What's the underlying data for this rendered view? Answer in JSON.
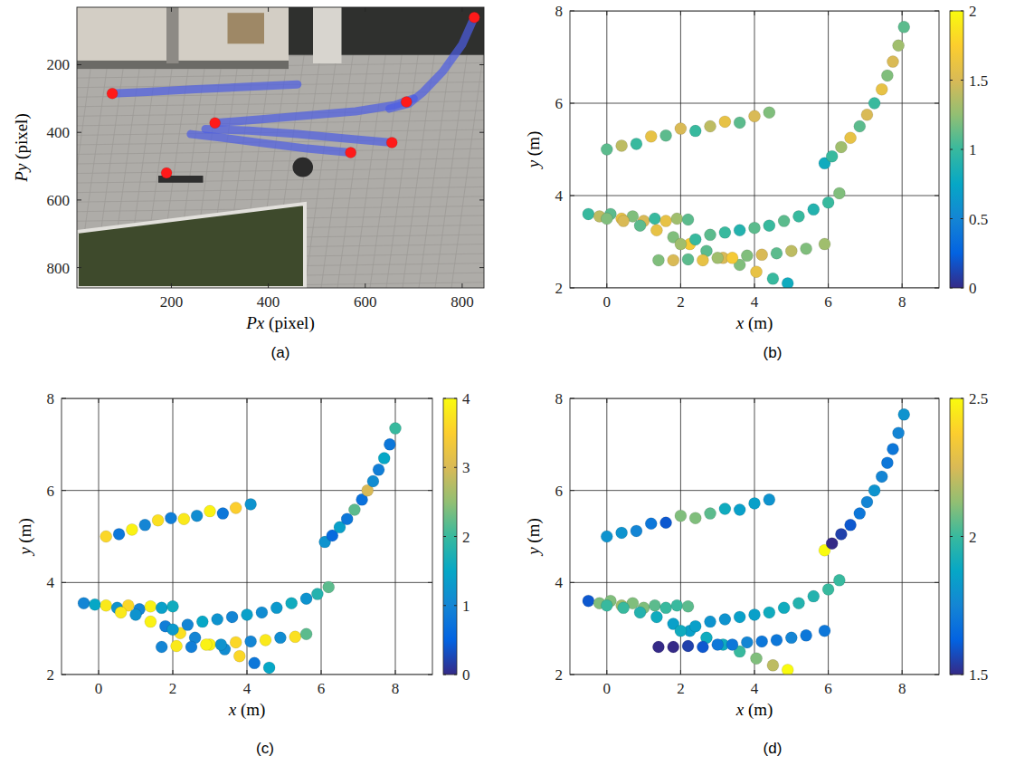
{
  "chart_data": [
    {
      "type": "image",
      "title": "(a)",
      "xlabel": "Px (pixel)",
      "ylabel": "Py (pixel)",
      "xlim": [
        5,
        845
      ],
      "ylim": [
        860,
        30
      ],
      "xticks": [
        200,
        400,
        600,
        800
      ],
      "yticks": [
        200,
        400,
        600,
        800
      ],
      "grid": false,
      "series": [
        {
          "type": "line",
          "color": "#4b5ce4",
          "x": [
            78,
            150,
            250,
            350,
            460
          ],
          "values": [
            285,
            280,
            272,
            266,
            258
          ]
        },
        {
          "type": "line",
          "color": "#4b5ce4",
          "x": [
            290,
            380,
            480,
            580,
            660,
            700
          ],
          "values": [
            372,
            362,
            350,
            338,
            320,
            300
          ]
        },
        {
          "type": "line",
          "color": "#4b5ce4",
          "x": [
            570,
            480,
            390,
            300,
            240
          ],
          "values": [
            460,
            448,
            432,
            415,
            405
          ]
        },
        {
          "type": "line",
          "color": "#4b5ce4",
          "x": [
            655,
            560,
            460,
            360,
            270
          ],
          "values": [
            430,
            418,
            405,
            395,
            390
          ]
        },
        {
          "type": "line",
          "color": "#4b5ce4",
          "x": [
            825,
            800,
            760,
            720,
            690,
            650
          ],
          "values": [
            60,
            140,
            220,
            280,
            315,
            330
          ]
        },
        {
          "type": "scatter",
          "color": "#ff1a1a",
          "marker": "circle",
          "x": [
            78,
            290,
            570,
            655,
            685,
            825,
            190
          ],
          "values": [
            285,
            372,
            460,
            430,
            310,
            60,
            520
          ]
        }
      ]
    },
    {
      "type": "scatter",
      "title": "(b)",
      "xlabel": "x (m)",
      "ylabel": "y (m)",
      "xlim": [
        -1,
        9
      ],
      "ylim": [
        2,
        8
      ],
      "xticks": [
        0,
        2,
        4,
        6,
        8
      ],
      "yticks": [
        2,
        4,
        6,
        8
      ],
      "grid": true,
      "marker": "circle",
      "colorbar": {
        "lim": [
          0,
          2
        ],
        "ticks": [
          0,
          0.5,
          1,
          1.5,
          2
        ]
      },
      "series": [
        {
          "x": [
            0,
            0.4,
            0.8,
            1.2,
            1.6,
            2.0,
            2.4,
            2.8,
            3.2,
            3.6,
            4.0,
            4.4
          ],
          "values": [
            5.0,
            5.08,
            5.12,
            5.28,
            5.3,
            5.45,
            5.4,
            5.5,
            5.6,
            5.58,
            5.72,
            5.8
          ],
          "color_values": [
            1.1,
            1.4,
            1.0,
            1.6,
            1.1,
            1.5,
            1.0,
            1.4,
            1.6,
            1.1,
            1.5,
            1.2
          ]
        },
        {
          "x": [
            5.9,
            6.1,
            6.35,
            6.6,
            6.85,
            7.05,
            7.25,
            7.45,
            7.6,
            7.75,
            7.9,
            8.05
          ],
          "values": [
            4.7,
            4.85,
            5.05,
            5.25,
            5.5,
            5.75,
            6.0,
            6.3,
            6.6,
            6.9,
            7.25,
            7.65
          ],
          "color_values": [
            0.8,
            1.0,
            1.3,
            1.6,
            1.1,
            1.5,
            1.0,
            1.6,
            1.2,
            1.5,
            1.3,
            1.1
          ]
        },
        {
          "x": [
            -0.5,
            -0.2,
            0.1,
            0.4,
            0.7,
            1.0,
            1.3,
            1.6,
            1.9,
            2.2
          ],
          "values": [
            3.6,
            3.55,
            3.6,
            3.5,
            3.55,
            3.45,
            3.5,
            3.45,
            3.5,
            3.48
          ],
          "color_values": [
            1.0,
            1.4,
            1.1,
            1.6,
            1.2,
            1.5,
            1.0,
            1.6,
            1.3,
            1.1
          ]
        },
        {
          "x": [
            0.0,
            0.45,
            0.9,
            1.35,
            1.8,
            2.25,
            2.7,
            3.15,
            3.6,
            4.05,
            4.5,
            4.9
          ],
          "values": [
            3.5,
            3.45,
            3.35,
            3.25,
            3.1,
            2.95,
            2.8,
            2.65,
            2.5,
            2.35,
            2.2,
            2.1
          ],
          "color_values": [
            1.2,
            1.5,
            1.1,
            1.6,
            1.2,
            1.7,
            1.1,
            1.5,
            1.2,
            1.6,
            1.0,
            0.8
          ]
        },
        {
          "x": [
            2.0,
            2.4,
            2.8,
            3.2,
            3.6,
            4.0,
            4.4,
            4.8,
            5.2,
            5.6,
            6.0,
            6.3
          ],
          "values": [
            2.95,
            3.05,
            3.15,
            3.2,
            3.25,
            3.3,
            3.35,
            3.45,
            3.55,
            3.7,
            3.85,
            4.05
          ],
          "color_values": [
            1.3,
            1.0,
            1.1,
            1.0,
            0.9,
            1.1,
            1.0,
            1.1,
            1.0,
            0.9,
            1.0,
            1.2
          ]
        },
        {
          "x": [
            1.4,
            1.8,
            2.2,
            2.6,
            3.0,
            3.4,
            3.8,
            4.2,
            4.6,
            5.0,
            5.4,
            5.9
          ],
          "values": [
            2.6,
            2.6,
            2.62,
            2.6,
            2.65,
            2.65,
            2.7,
            2.72,
            2.75,
            2.8,
            2.85,
            2.95
          ],
          "color_values": [
            1.2,
            1.5,
            1.1,
            1.6,
            1.3,
            1.7,
            1.2,
            1.5,
            1.1,
            1.4,
            1.2,
            1.3
          ]
        }
      ]
    },
    {
      "type": "scatter",
      "title": "(c)",
      "xlabel": "x (m)",
      "ylabel": "y (m)",
      "xlim": [
        -1,
        9
      ],
      "ylim": [
        2,
        8
      ],
      "xticks": [
        0,
        2,
        4,
        6,
        8
      ],
      "yticks": [
        2,
        4,
        6,
        8
      ],
      "grid": true,
      "marker": "circle",
      "colorbar": {
        "lim": [
          0,
          4
        ],
        "ticks": [
          0,
          1,
          2,
          3,
          4
        ]
      },
      "series": [
        {
          "x": [
            0.2,
            0.55,
            0.9,
            1.25,
            1.6,
            1.95,
            2.3,
            2.65,
            3.0,
            3.35,
            3.7,
            4.1
          ],
          "values": [
            5.0,
            5.05,
            5.15,
            5.25,
            5.35,
            5.4,
            5.38,
            5.45,
            5.55,
            5.5,
            5.62,
            5.7
          ],
          "color_values": [
            3.6,
            0.8,
            3.9,
            1.0,
            3.7,
            0.9,
            3.8,
            1.1,
            3.9,
            0.8,
            3.5,
            1.2
          ]
        },
        {
          "x": [
            6.1,
            6.3,
            6.5,
            6.7,
            6.9,
            7.1,
            7.25,
            7.4,
            7.55,
            7.7,
            7.85,
            8.0
          ],
          "values": [
            4.88,
            5.02,
            5.2,
            5.38,
            5.58,
            5.8,
            6.0,
            6.2,
            6.45,
            6.7,
            7.0,
            7.35
          ],
          "color_values": [
            1.2,
            0.6,
            1.4,
            0.8,
            2.2,
            0.7,
            3.0,
            1.1,
            0.9,
            1.5,
            0.8,
            2.0
          ]
        },
        {
          "x": [
            -0.4,
            -0.1,
            0.2,
            0.5,
            0.8,
            1.1,
            1.4,
            1.7,
            2.0
          ],
          "values": [
            3.55,
            3.52,
            3.5,
            3.45,
            3.5,
            3.42,
            3.48,
            3.45,
            3.48
          ],
          "color_values": [
            1.0,
            1.5,
            3.8,
            1.2,
            3.6,
            1.0,
            3.9,
            1.4,
            1.6
          ]
        },
        {
          "x": [
            0.6,
            1.0,
            1.4,
            1.8,
            2.2,
            2.6,
            3.0,
            3.4,
            3.8,
            4.2,
            4.6
          ],
          "values": [
            3.35,
            3.3,
            3.15,
            3.05,
            2.9,
            2.8,
            2.65,
            2.55,
            2.4,
            2.25,
            2.15
          ],
          "color_values": [
            3.8,
            1.2,
            3.9,
            0.9,
            3.7,
            1.0,
            3.9,
            1.1,
            3.6,
            0.8,
            1.5
          ]
        },
        {
          "x": [
            2.0,
            2.4,
            2.8,
            3.2,
            3.6,
            4.0,
            4.4,
            4.8,
            5.2,
            5.6,
            5.9,
            6.2
          ],
          "values": [
            2.98,
            3.08,
            3.15,
            3.2,
            3.25,
            3.3,
            3.35,
            3.45,
            3.55,
            3.65,
            3.75,
            3.9
          ],
          "color_values": [
            1.3,
            1.0,
            1.5,
            1.2,
            1.0,
            1.4,
            1.1,
            1.3,
            1.6,
            1.2,
            1.8,
            2.2
          ]
        },
        {
          "x": [
            1.7,
            2.1,
            2.5,
            2.9,
            3.3,
            3.7,
            4.1,
            4.5,
            4.9,
            5.3,
            5.6
          ],
          "values": [
            2.6,
            2.62,
            2.6,
            2.65,
            2.65,
            2.7,
            2.72,
            2.75,
            2.8,
            2.82,
            2.88
          ],
          "color_values": [
            1.0,
            3.8,
            0.9,
            3.9,
            1.2,
            3.6,
            1.0,
            3.8,
            1.1,
            3.7,
            2.2
          ]
        }
      ]
    },
    {
      "type": "scatter",
      "title": "(d)",
      "xlabel": "x (m)",
      "ylabel": "y (m)",
      "xlim": [
        -1,
        9
      ],
      "ylim": [
        2,
        8
      ],
      "xticks": [
        0,
        2,
        4,
        6,
        8
      ],
      "yticks": [
        2,
        4,
        6,
        8
      ],
      "grid": true,
      "marker": "circle",
      "colorbar": {
        "lim": [
          1.5,
          2.5
        ],
        "ticks": [
          1.5,
          2,
          2.5
        ]
      },
      "series": [
        {
          "x": [
            0,
            0.4,
            0.8,
            1.2,
            1.6,
            2.0,
            2.4,
            2.8,
            3.2,
            3.6,
            4.0,
            4.4
          ],
          "values": [
            5.0,
            5.08,
            5.12,
            5.28,
            5.3,
            5.45,
            5.4,
            5.5,
            5.6,
            5.58,
            5.72,
            5.8
          ],
          "color_values": [
            1.8,
            1.8,
            1.75,
            1.7,
            1.6,
            2.1,
            2.1,
            2.05,
            1.9,
            1.85,
            1.85,
            1.8
          ]
        },
        {
          "x": [
            5.9,
            6.1,
            6.35,
            6.6,
            6.85,
            7.05,
            7.25,
            7.45,
            7.6,
            7.75,
            7.9,
            8.05
          ],
          "values": [
            4.7,
            4.85,
            5.05,
            5.25,
            5.5,
            5.75,
            6.0,
            6.3,
            6.6,
            6.9,
            7.25,
            7.65
          ],
          "color_values": [
            2.5,
            1.5,
            1.55,
            1.6,
            1.7,
            1.75,
            1.8,
            1.75,
            1.7,
            1.7,
            1.75,
            1.8
          ]
        },
        {
          "x": [
            -0.5,
            -0.2,
            0.1,
            0.4,
            0.7,
            1.0,
            1.3,
            1.6,
            1.9,
            2.2
          ],
          "values": [
            3.6,
            3.55,
            3.6,
            3.5,
            3.55,
            3.45,
            3.5,
            3.45,
            3.5,
            3.48
          ],
          "color_values": [
            1.6,
            2.1,
            2.1,
            2.15,
            2.1,
            2.1,
            2.05,
            2.0,
            2.0,
            2.05
          ]
        },
        {
          "x": [
            0.0,
            0.45,
            0.9,
            1.35,
            1.8,
            2.25,
            2.7,
            3.15,
            3.6,
            4.05,
            4.5,
            4.9
          ],
          "values": [
            3.5,
            3.45,
            3.35,
            3.25,
            3.1,
            2.95,
            2.8,
            2.65,
            2.5,
            2.35,
            2.2,
            2.1
          ],
          "color_values": [
            2.0,
            2.0,
            1.95,
            1.9,
            1.85,
            1.85,
            1.9,
            1.9,
            2.0,
            2.1,
            2.2,
            2.5
          ]
        },
        {
          "x": [
            2.0,
            2.4,
            2.8,
            3.2,
            3.6,
            4.0,
            4.4,
            4.8,
            5.2,
            5.6,
            6.0,
            6.3
          ],
          "values": [
            2.95,
            3.05,
            3.15,
            3.2,
            3.25,
            3.3,
            3.35,
            3.45,
            3.55,
            3.7,
            3.85,
            4.05
          ],
          "color_values": [
            1.9,
            1.85,
            1.8,
            1.8,
            1.85,
            1.85,
            1.9,
            1.9,
            1.95,
            1.95,
            2.0,
            2.0
          ]
        },
        {
          "x": [
            1.4,
            1.8,
            2.2,
            2.6,
            3.0,
            3.4,
            3.8,
            4.2,
            4.6,
            5.0,
            5.4,
            5.9
          ],
          "values": [
            2.6,
            2.6,
            2.62,
            2.6,
            2.65,
            2.65,
            2.7,
            2.72,
            2.75,
            2.8,
            2.85,
            2.95
          ],
          "color_values": [
            1.5,
            1.5,
            1.55,
            1.6,
            1.7,
            1.7,
            1.75,
            1.7,
            1.7,
            1.75,
            1.7,
            1.7
          ]
        }
      ]
    }
  ]
}
